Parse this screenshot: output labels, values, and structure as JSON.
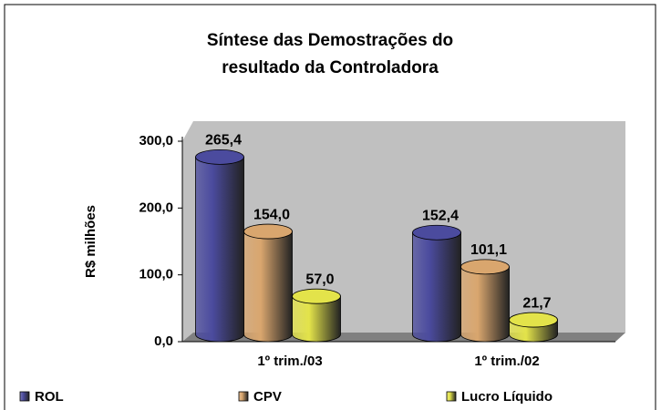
{
  "chart_data": {
    "type": "bar3d",
    "title": [
      "Síntese das Demostrações do",
      "resultado da Controladora"
    ],
    "y_label": "R$ milhões",
    "categories": [
      "1º trim./03",
      "1º trim./02"
    ],
    "series": [
      {
        "name": "ROL",
        "color": "#4b4b9e",
        "values": [
          265.4,
          152.4
        ],
        "value_labels": [
          "265,4",
          "152,4"
        ]
      },
      {
        "name": "CPV",
        "color": "#d9a66e",
        "values": [
          154.0,
          101.1
        ],
        "value_labels": [
          "154,0",
          "101,1"
        ]
      },
      {
        "name": "Lucro Líquido",
        "color": "#e3e34a",
        "values": [
          57.0,
          21.7
        ],
        "value_labels": [
          "57,0",
          "21,7"
        ]
      }
    ],
    "ylim": [
      0,
      330
    ],
    "yticks": [
      {
        "value": 0,
        "label": "0,0"
      },
      {
        "value": 100,
        "label": "100,0"
      },
      {
        "value": 200,
        "label": "200,0"
      },
      {
        "value": 300,
        "label": "300,0"
      }
    ],
    "legend": "bottom"
  }
}
